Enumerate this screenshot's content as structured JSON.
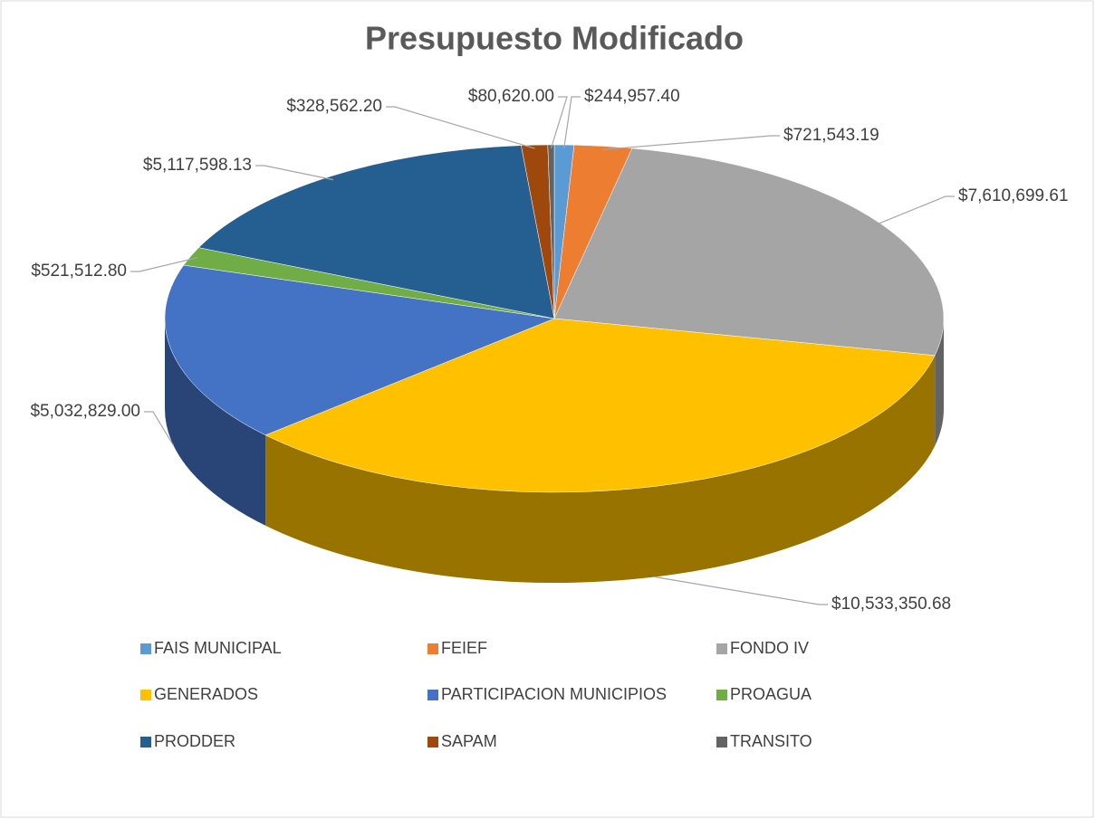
{
  "chart_data": {
    "type": "pie3d",
    "title": "Presupuesto Modificado",
    "categories": [
      "FAIS MUNICIPAL",
      "FEIEF",
      "FONDO IV",
      "GENERADOS",
      "PARTICIPACION MUNICIPIOS",
      "PROAGUA",
      "PRODDER",
      "SAPAM",
      "TRANSITO"
    ],
    "values": [
      244957.4,
      721543.19,
      7610699.61,
      10533350.68,
      5032829.0,
      521512.8,
      5117598.13,
      328562.2,
      80620.0
    ],
    "value_labels": [
      "$244,957.40",
      "$721,543.19",
      "$7,610,699.61",
      "$10,533,350.68",
      "$5,032,829.00",
      "$521,512.80",
      "$5,117,598.13",
      "$328,562.20",
      "$80,620.00"
    ],
    "colors": [
      "#5b9bd5",
      "#ed7d31",
      "#a5a5a5",
      "#ffc000",
      "#4472c4",
      "#70ad47",
      "#255e91",
      "#9e480e",
      "#636363"
    ],
    "legend": "bottom"
  }
}
